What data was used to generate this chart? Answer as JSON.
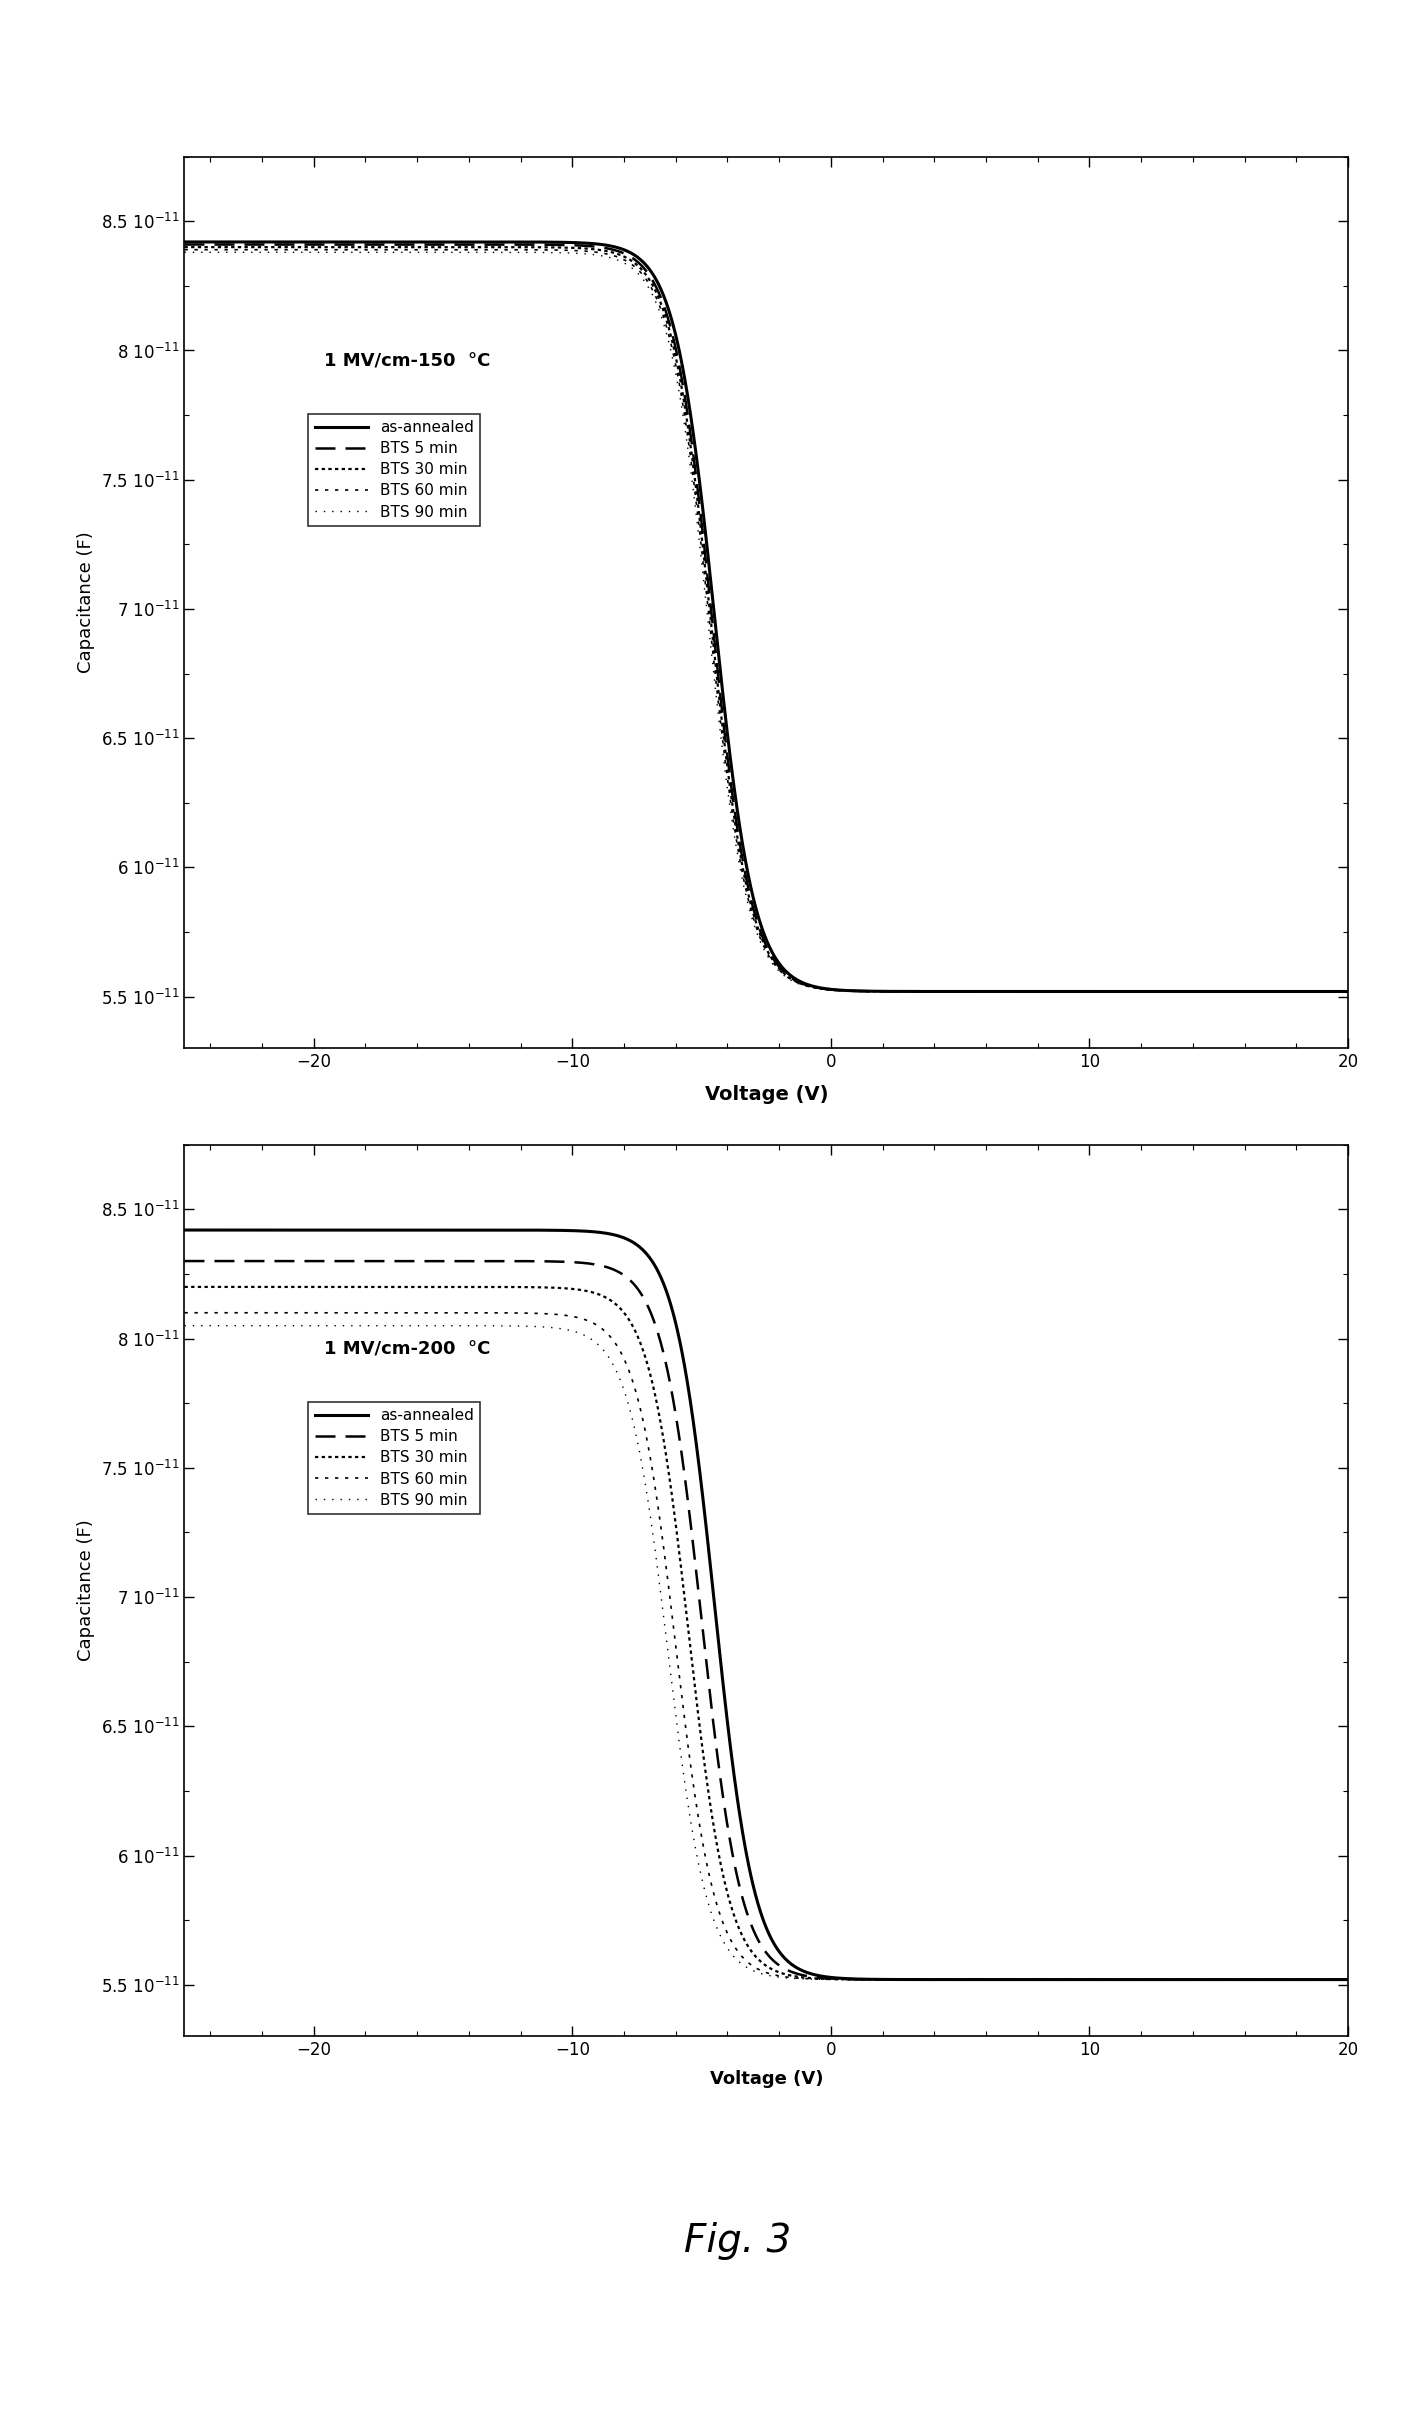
{
  "title1": "1 MV/cm-150  °C",
  "title2": "1 MV/cm-200  °C",
  "xlabel": "Voltage (V)",
  "ylabel": "Capacitance (F)",
  "xlim": [
    -25,
    20
  ],
  "ylim": [
    5.3e-11,
    8.75e-11
  ],
  "yticks": [
    5.5e-11,
    6e-11,
    6.5e-11,
    7e-11,
    7.5e-11,
    8e-11,
    8.5e-11
  ],
  "xticks": [
    -20,
    -10,
    0,
    10,
    20
  ],
  "C_max": 8.42e-11,
  "C_min": 5.52e-11,
  "legend_labels": [
    "as-annealed",
    "BTS 5 min",
    "BTS 30 min",
    "BTS 60 min",
    "BTS 90 min"
  ],
  "fig3_text": "Fig. 3",
  "bg_color": "#ffffff",
  "line_color": "#000000",
  "plot1_v_half": [
    -4.5,
    -4.6,
    -4.65,
    -4.7,
    -4.75
  ],
  "plot1_steepness": [
    1.3,
    1.3,
    1.3,
    1.3,
    1.3
  ],
  "plot1_Cmax": [
    8.42e-11,
    8.41e-11,
    8.4e-11,
    8.39e-11,
    8.38e-11
  ],
  "plot2_v_half": [
    -4.5,
    -5.0,
    -5.5,
    -6.0,
    -6.3
  ],
  "plot2_steepness": [
    1.3,
    1.3,
    1.3,
    1.3,
    1.3
  ],
  "plot2_Cmax": [
    8.42e-11,
    8.3e-11,
    8.2e-11,
    8.1e-11,
    8.05e-11
  ]
}
